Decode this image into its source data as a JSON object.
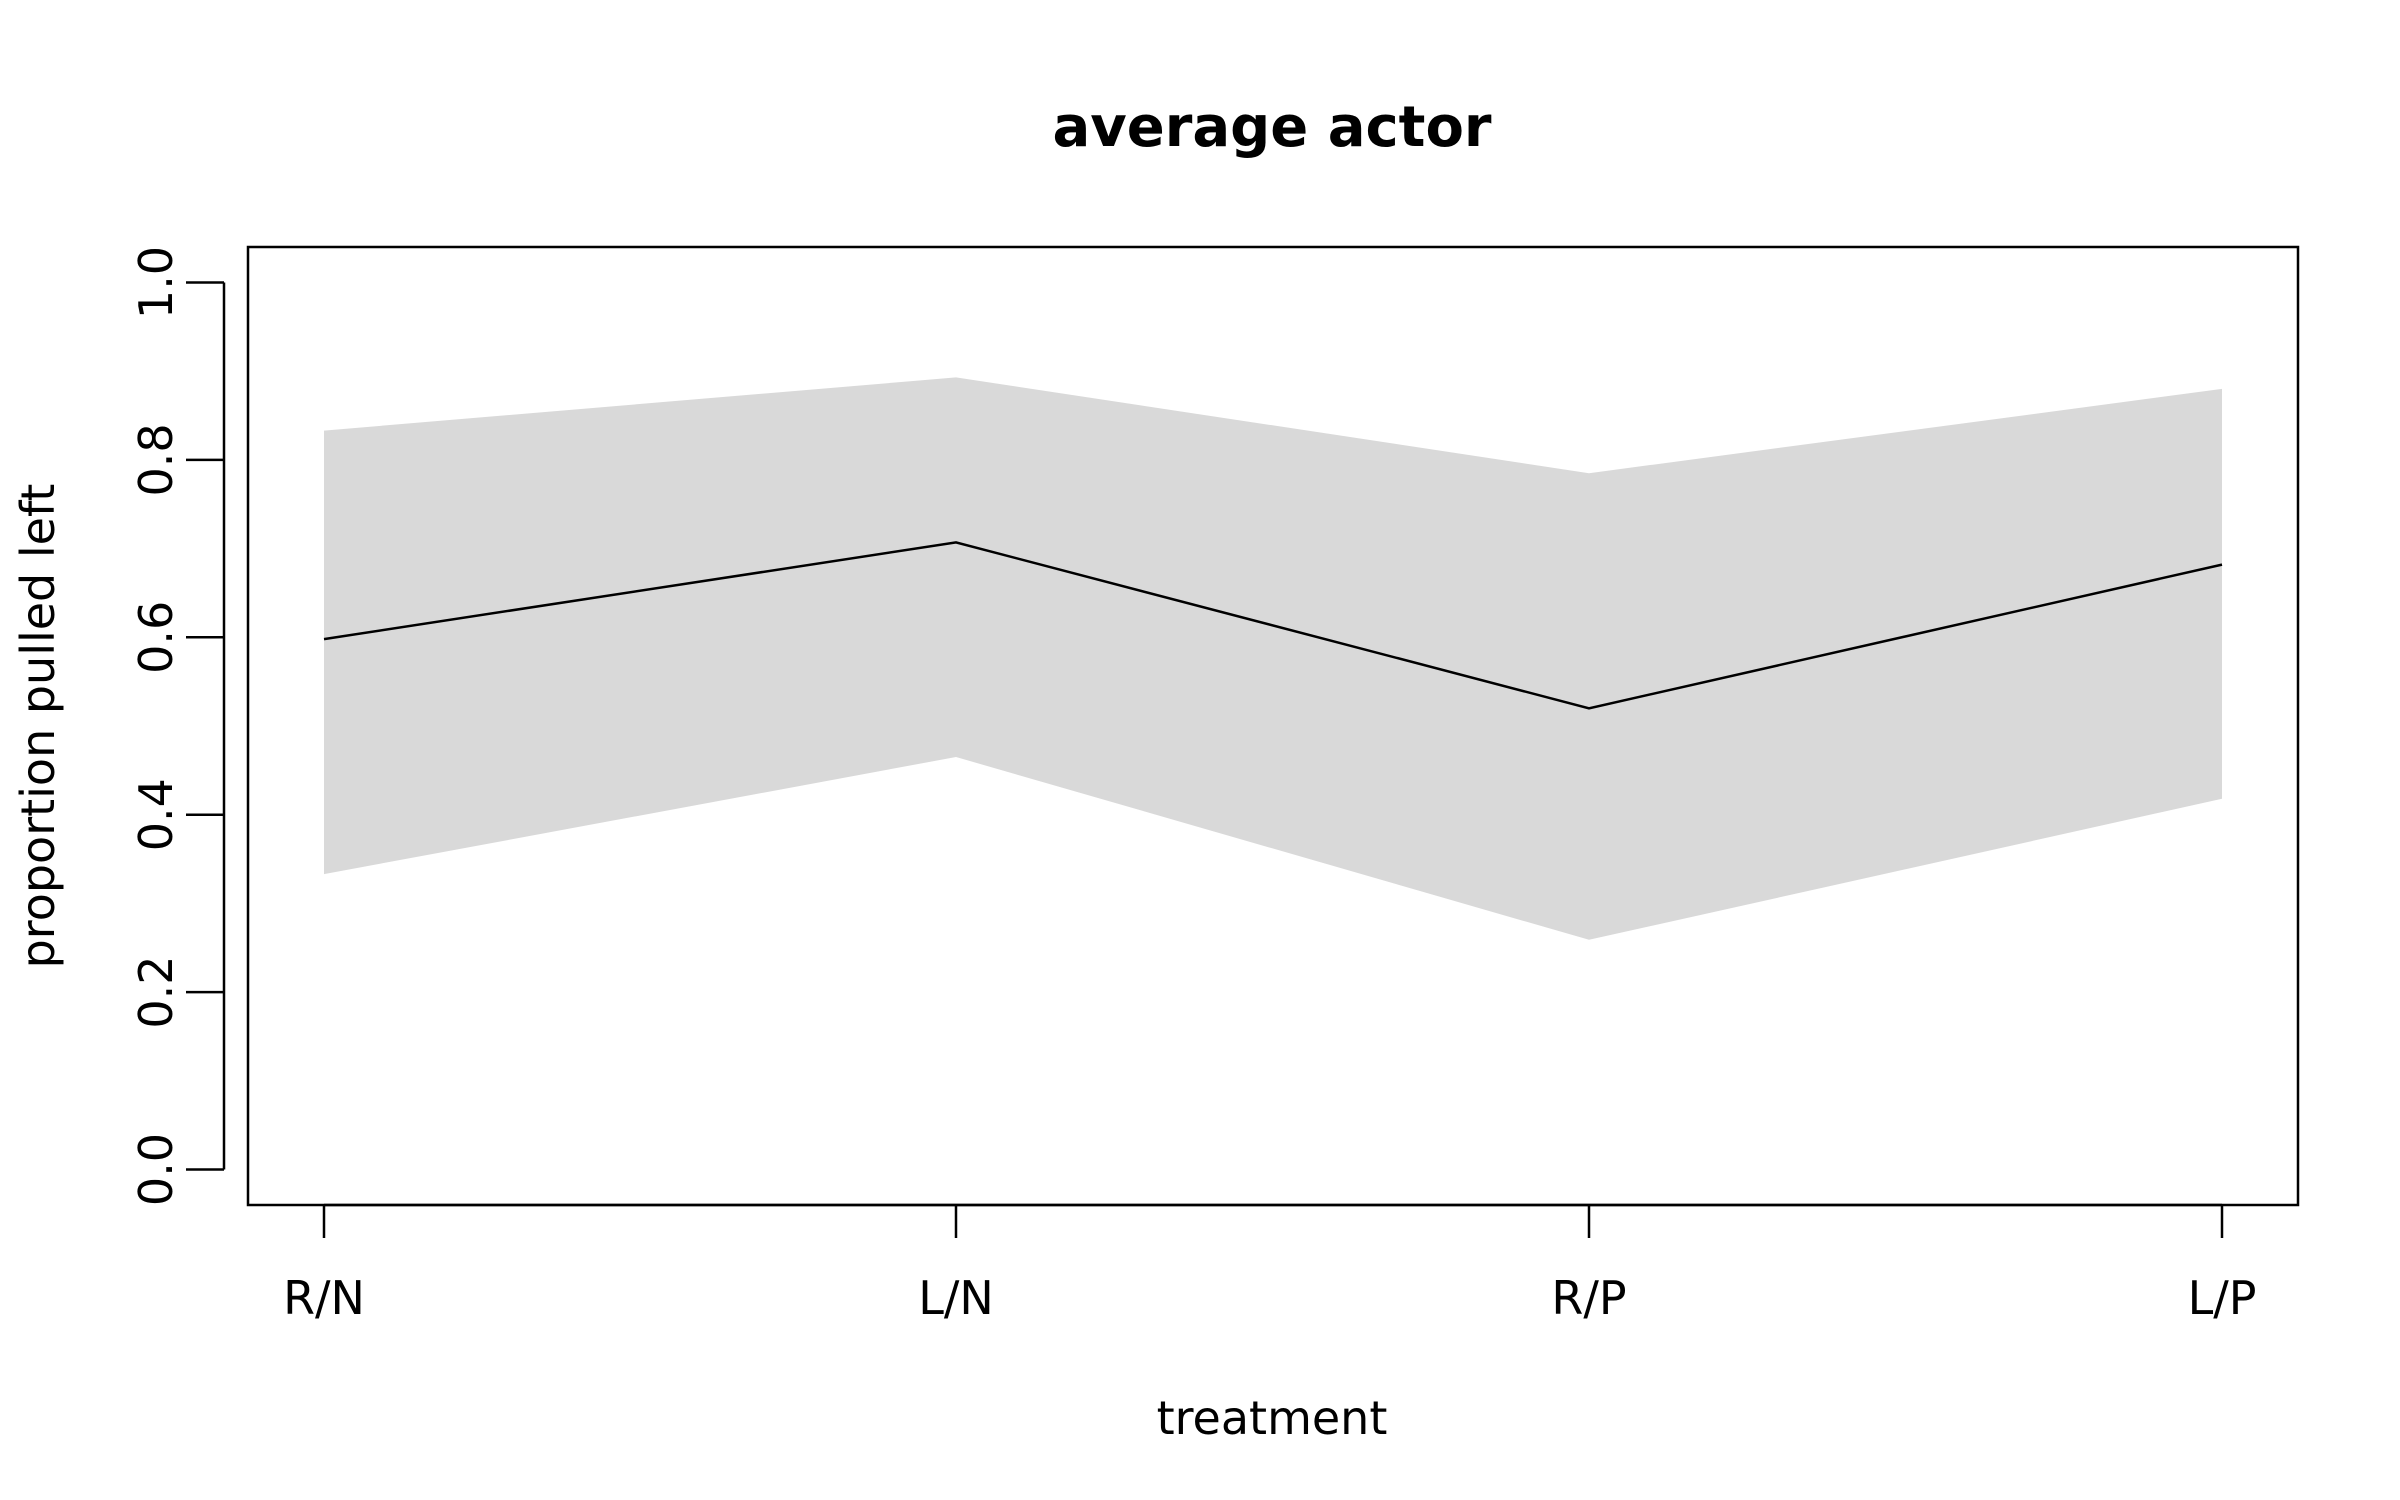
{
  "chart_data": {
    "type": "area",
    "title": "average actor",
    "xlabel": "treatment",
    "ylabel": "proportion pulled left",
    "categories": [
      "R/N",
      "L/N",
      "R/P",
      "L/P"
    ],
    "ylim": [
      -0.04,
      1.04
    ],
    "y_ticks": [
      0.0,
      0.2,
      0.4,
      0.6,
      0.8,
      1.0
    ],
    "y_tick_labels": [
      "0.0",
      "0.2",
      "0.4",
      "0.6",
      "0.8",
      "1.0"
    ],
    "series": [
      {
        "values": [
          0.598,
          0.707,
          0.52,
          0.682
        ],
        "lower": [
          0.333,
          0.465,
          0.259,
          0.418
        ],
        "upper": [
          0.833,
          0.893,
          0.785,
          0.88
        ]
      }
    ],
    "grid": false,
    "legend": "none",
    "colors": {
      "band": "#d9d9d9",
      "line": "#000000"
    }
  }
}
